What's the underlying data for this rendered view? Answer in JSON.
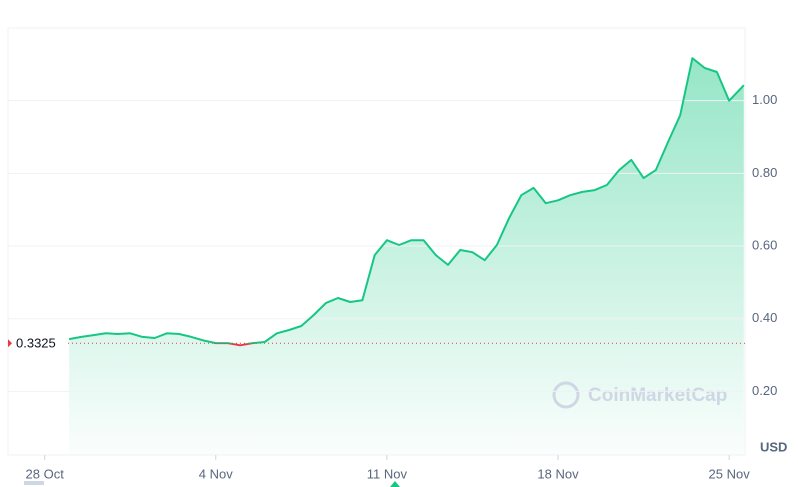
{
  "chart_data": {
    "type": "area",
    "currency": "USD",
    "watermark": "CoinMarketCap",
    "baseline": 0.3325,
    "xlim": [
      -1.5,
      28.65
    ],
    "xticks": [
      {
        "value": 0,
        "label": "28 Oct"
      },
      {
        "value": 7,
        "label": "4 Nov"
      },
      {
        "value": 14,
        "label": "11 Nov"
      },
      {
        "value": 21,
        "label": "18 Nov"
      },
      {
        "value": 28,
        "label": "25 Nov"
      }
    ],
    "ylim": [
      0.025,
      1.2
    ],
    "yticks": [
      {
        "value": 0.2,
        "label": "0.20"
      },
      {
        "value": 0.4,
        "label": "0.40"
      },
      {
        "value": 0.6,
        "label": "0.60"
      },
      {
        "value": 0.8,
        "label": "0.80"
      },
      {
        "value": 1.0,
        "label": "1.00"
      }
    ],
    "grid": true,
    "up_color": "#16c784",
    "down_color": "#ea3943",
    "x": [
      1,
      1.5,
      2,
      2.5,
      3,
      3.5,
      4,
      4.5,
      5,
      5.5,
      6,
      6.5,
      7,
      7.5,
      8,
      8.5,
      9,
      9.5,
      10,
      10.5,
      11,
      11.5,
      12,
      12.5,
      13,
      13.5,
      14,
      14.5,
      15,
      15.5,
      16,
      16.5,
      17,
      17.5,
      18,
      18.5,
      19,
      19.5,
      20,
      20.5,
      21,
      21.5,
      22,
      22.5,
      23,
      23.5,
      24,
      24.5,
      25,
      25.5,
      26,
      26.5,
      27,
      27.5,
      28,
      28.5,
      28.6
    ],
    "values": [
      0.344,
      0.35,
      0.355,
      0.36,
      0.358,
      0.36,
      0.35,
      0.347,
      0.36,
      0.358,
      0.35,
      0.34,
      0.333,
      0.333,
      0.327,
      0.333,
      0.336,
      0.36,
      0.369,
      0.38,
      0.41,
      0.443,
      0.457,
      0.446,
      0.451,
      0.575,
      0.616,
      0.603,
      0.616,
      0.616,
      0.575,
      0.548,
      0.589,
      0.583,
      0.561,
      0.603,
      0.677,
      0.74,
      0.76,
      0.718,
      0.726,
      0.74,
      0.749,
      0.754,
      0.768,
      0.809,
      0.837,
      0.787,
      0.809,
      0.886,
      0.96,
      1.117,
      1.09,
      1.079,
      1.0,
      1.035,
      1.043
    ]
  }
}
